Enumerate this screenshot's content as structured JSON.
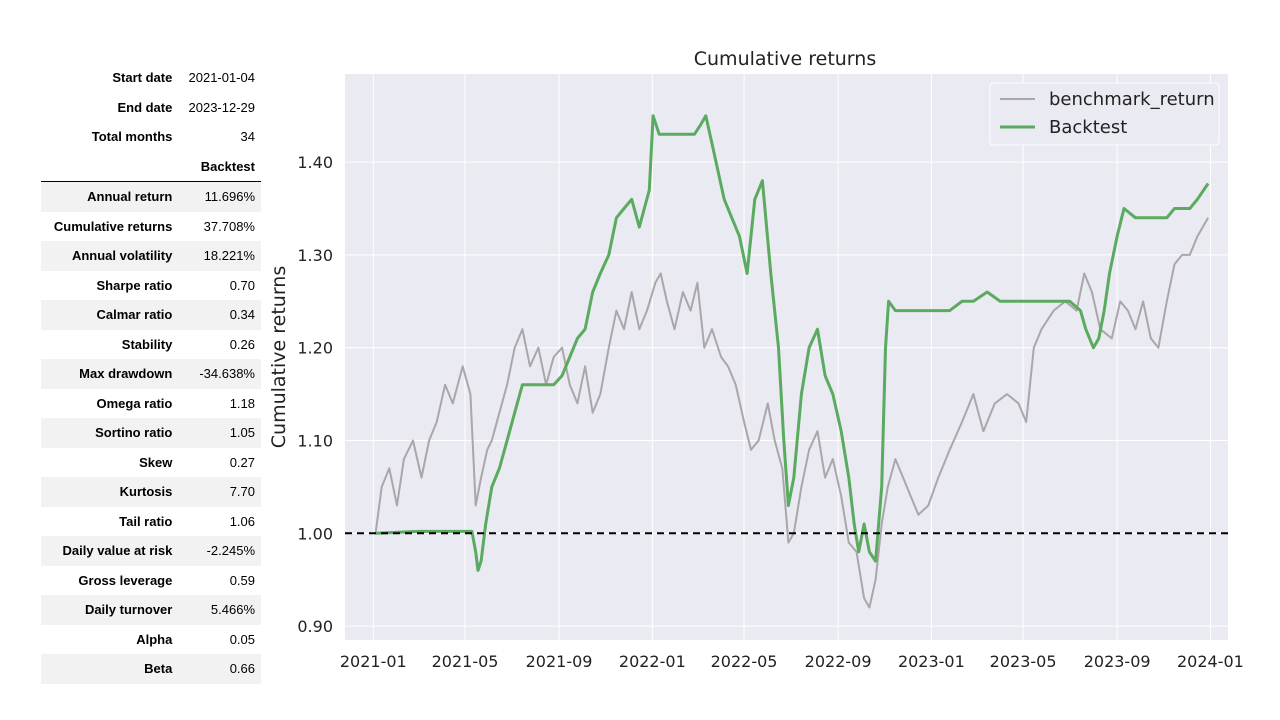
{
  "stats_header": [
    {
      "label": "Start date",
      "value": "2021-01-04"
    },
    {
      "label": "End date",
      "value": "2023-12-29"
    },
    {
      "label": "Total months",
      "value": "34"
    }
  ],
  "stats_column_header": "Backtest",
  "stats_rows": [
    {
      "label": "Annual return",
      "value": "11.696%"
    },
    {
      "label": "Cumulative returns",
      "value": "37.708%"
    },
    {
      "label": "Annual volatility",
      "value": "18.221%"
    },
    {
      "label": "Sharpe ratio",
      "value": "0.70"
    },
    {
      "label": "Calmar ratio",
      "value": "0.34"
    },
    {
      "label": "Stability",
      "value": "0.26"
    },
    {
      "label": "Max drawdown",
      "value": "-34.638%"
    },
    {
      "label": "Omega ratio",
      "value": "1.18"
    },
    {
      "label": "Sortino ratio",
      "value": "1.05"
    },
    {
      "label": "Skew",
      "value": "0.27"
    },
    {
      "label": "Kurtosis",
      "value": "7.70"
    },
    {
      "label": "Tail ratio",
      "value": "1.06"
    },
    {
      "label": "Daily value at risk",
      "value": "-2.245%"
    },
    {
      "label": "Gross leverage",
      "value": "0.59"
    },
    {
      "label": "Daily turnover",
      "value": "5.466%"
    },
    {
      "label": "Alpha",
      "value": "0.05"
    },
    {
      "label": "Beta",
      "value": "0.66"
    }
  ],
  "chart_data": {
    "type": "line",
    "title": "Cumulative returns",
    "xlabel": "",
    "ylabel": "Cumulative returns",
    "xlim": [
      "2020-11-25",
      "2024-01-24"
    ],
    "ylim": [
      0.885,
      1.495
    ],
    "yticks": [
      0.9,
      1.0,
      1.1,
      1.2,
      1.3,
      1.4
    ],
    "ytick_labels": [
      "0.90",
      "1.00",
      "1.10",
      "1.20",
      "1.30",
      "1.40"
    ],
    "xticks": [
      "2021-01-01",
      "2021-05-01",
      "2021-09-01",
      "2022-01-01",
      "2022-05-01",
      "2022-09-01",
      "2023-01-01",
      "2023-05-01",
      "2023-09-01",
      "2024-01-01"
    ],
    "xtick_labels": [
      "2021-01",
      "2021-05",
      "2021-09",
      "2022-01",
      "2022-05",
      "2022-09",
      "2023-01",
      "2023-05",
      "2023-09",
      "2024-01"
    ],
    "reference_line": {
      "y": 1.0,
      "style": "dashed",
      "color": "#000000"
    },
    "legend_position": "top-right",
    "grid": true,
    "series": [
      {
        "name": "benchmark_return",
        "color": "#aaa6a9",
        "points": [
          [
            "2021-01-04",
            1.0
          ],
          [
            "2021-01-12",
            1.05
          ],
          [
            "2021-01-22",
            1.07
          ],
          [
            "2021-02-01",
            1.03
          ],
          [
            "2021-02-10",
            1.08
          ],
          [
            "2021-02-22",
            1.1
          ],
          [
            "2021-03-05",
            1.06
          ],
          [
            "2021-03-15",
            1.1
          ],
          [
            "2021-03-25",
            1.12
          ],
          [
            "2021-04-05",
            1.16
          ],
          [
            "2021-04-15",
            1.14
          ],
          [
            "2021-04-28",
            1.18
          ],
          [
            "2021-05-08",
            1.15
          ],
          [
            "2021-05-15",
            1.03
          ],
          [
            "2021-05-22",
            1.06
          ],
          [
            "2021-05-30",
            1.09
          ],
          [
            "2021-06-05",
            1.1
          ],
          [
            "2021-06-15",
            1.13
          ],
          [
            "2021-06-25",
            1.16
          ],
          [
            "2021-07-05",
            1.2
          ],
          [
            "2021-07-15",
            1.22
          ],
          [
            "2021-07-25",
            1.18
          ],
          [
            "2021-08-05",
            1.2
          ],
          [
            "2021-08-15",
            1.16
          ],
          [
            "2021-08-25",
            1.19
          ],
          [
            "2021-09-05",
            1.2
          ],
          [
            "2021-09-15",
            1.16
          ],
          [
            "2021-09-25",
            1.14
          ],
          [
            "2021-10-05",
            1.18
          ],
          [
            "2021-10-15",
            1.13
          ],
          [
            "2021-10-25",
            1.15
          ],
          [
            "2021-11-05",
            1.2
          ],
          [
            "2021-11-15",
            1.24
          ],
          [
            "2021-11-25",
            1.22
          ],
          [
            "2021-12-05",
            1.26
          ],
          [
            "2021-12-15",
            1.22
          ],
          [
            "2021-12-25",
            1.24
          ],
          [
            "2022-01-05",
            1.27
          ],
          [
            "2022-01-12",
            1.28
          ],
          [
            "2022-01-20",
            1.25
          ],
          [
            "2022-01-30",
            1.22
          ],
          [
            "2022-02-10",
            1.26
          ],
          [
            "2022-02-20",
            1.24
          ],
          [
            "2022-03-01",
            1.27
          ],
          [
            "2022-03-10",
            1.2
          ],
          [
            "2022-03-20",
            1.22
          ],
          [
            "2022-04-01",
            1.19
          ],
          [
            "2022-04-10",
            1.18
          ],
          [
            "2022-04-20",
            1.16
          ],
          [
            "2022-05-01",
            1.12
          ],
          [
            "2022-05-10",
            1.09
          ],
          [
            "2022-05-20",
            1.1
          ],
          [
            "2022-06-01",
            1.14
          ],
          [
            "2022-06-10",
            1.1
          ],
          [
            "2022-06-20",
            1.07
          ],
          [
            "2022-06-28",
            0.99
          ],
          [
            "2022-07-05",
            1.0
          ],
          [
            "2022-07-15",
            1.05
          ],
          [
            "2022-07-25",
            1.09
          ],
          [
            "2022-08-05",
            1.11
          ],
          [
            "2022-08-15",
            1.06
          ],
          [
            "2022-08-25",
            1.08
          ],
          [
            "2022-09-05",
            1.04
          ],
          [
            "2022-09-15",
            0.99
          ],
          [
            "2022-09-25",
            0.98
          ],
          [
            "2022-10-05",
            0.93
          ],
          [
            "2022-10-12",
            0.92
          ],
          [
            "2022-10-20",
            0.95
          ],
          [
            "2022-10-28",
            1.01
          ],
          [
            "2022-11-05",
            1.05
          ],
          [
            "2022-11-15",
            1.08
          ],
          [
            "2022-11-25",
            1.06
          ],
          [
            "2022-12-05",
            1.04
          ],
          [
            "2022-12-15",
            1.02
          ],
          [
            "2022-12-28",
            1.03
          ],
          [
            "2023-01-10",
            1.06
          ],
          [
            "2023-01-25",
            1.09
          ],
          [
            "2023-02-10",
            1.12
          ],
          [
            "2023-02-25",
            1.15
          ],
          [
            "2023-03-10",
            1.11
          ],
          [
            "2023-03-25",
            1.14
          ],
          [
            "2023-04-10",
            1.15
          ],
          [
            "2023-04-25",
            1.14
          ],
          [
            "2023-05-05",
            1.12
          ],
          [
            "2023-05-15",
            1.2
          ],
          [
            "2023-05-25",
            1.22
          ],
          [
            "2023-06-10",
            1.24
          ],
          [
            "2023-06-25",
            1.25
          ],
          [
            "2023-07-10",
            1.24
          ],
          [
            "2023-07-20",
            1.28
          ],
          [
            "2023-07-30",
            1.26
          ],
          [
            "2023-08-10",
            1.22
          ],
          [
            "2023-08-25",
            1.21
          ],
          [
            "2023-09-05",
            1.25
          ],
          [
            "2023-09-15",
            1.24
          ],
          [
            "2023-09-25",
            1.22
          ],
          [
            "2023-10-05",
            1.25
          ],
          [
            "2023-10-15",
            1.21
          ],
          [
            "2023-10-25",
            1.2
          ],
          [
            "2023-11-05",
            1.25
          ],
          [
            "2023-11-15",
            1.29
          ],
          [
            "2023-11-25",
            1.3
          ],
          [
            "2023-12-05",
            1.3
          ],
          [
            "2023-12-15",
            1.32
          ],
          [
            "2023-12-29",
            1.34
          ]
        ]
      },
      {
        "name": "Backtest",
        "color": "#5aaa5f",
        "points": [
          [
            "2021-01-04",
            1.0
          ],
          [
            "2021-03-01",
            1.002
          ],
          [
            "2021-05-10",
            1.002
          ],
          [
            "2021-05-15",
            0.98
          ],
          [
            "2021-05-18",
            0.96
          ],
          [
            "2021-05-22",
            0.97
          ],
          [
            "2021-05-28",
            1.01
          ],
          [
            "2021-06-05",
            1.05
          ],
          [
            "2021-06-15",
            1.07
          ],
          [
            "2021-06-25",
            1.1
          ],
          [
            "2021-07-05",
            1.13
          ],
          [
            "2021-07-15",
            1.16
          ],
          [
            "2021-08-05",
            1.16
          ],
          [
            "2021-08-25",
            1.16
          ],
          [
            "2021-09-05",
            1.17
          ],
          [
            "2021-09-15",
            1.19
          ],
          [
            "2021-09-25",
            1.21
          ],
          [
            "2021-10-05",
            1.22
          ],
          [
            "2021-10-15",
            1.26
          ],
          [
            "2021-10-25",
            1.28
          ],
          [
            "2021-11-05",
            1.3
          ],
          [
            "2021-11-15",
            1.34
          ],
          [
            "2021-11-25",
            1.35
          ],
          [
            "2021-12-05",
            1.36
          ],
          [
            "2021-12-15",
            1.33
          ],
          [
            "2021-12-28",
            1.37
          ],
          [
            "2022-01-02",
            1.45
          ],
          [
            "2022-01-10",
            1.43
          ],
          [
            "2022-01-25",
            1.43
          ],
          [
            "2022-02-10",
            1.43
          ],
          [
            "2022-02-25",
            1.43
          ],
          [
            "2022-03-05",
            1.44
          ],
          [
            "2022-03-12",
            1.45
          ],
          [
            "2022-03-20",
            1.42
          ],
          [
            "2022-03-28",
            1.39
          ],
          [
            "2022-04-05",
            1.36
          ],
          [
            "2022-04-15",
            1.34
          ],
          [
            "2022-04-25",
            1.32
          ],
          [
            "2022-05-05",
            1.28
          ],
          [
            "2022-05-15",
            1.36
          ],
          [
            "2022-05-25",
            1.38
          ],
          [
            "2022-06-05",
            1.28
          ],
          [
            "2022-06-15",
            1.2
          ],
          [
            "2022-06-22",
            1.1
          ],
          [
            "2022-06-28",
            1.03
          ],
          [
            "2022-07-05",
            1.06
          ],
          [
            "2022-07-15",
            1.15
          ],
          [
            "2022-07-25",
            1.2
          ],
          [
            "2022-08-05",
            1.22
          ],
          [
            "2022-08-15",
            1.17
          ],
          [
            "2022-08-25",
            1.15
          ],
          [
            "2022-09-05",
            1.11
          ],
          [
            "2022-09-15",
            1.06
          ],
          [
            "2022-09-22",
            1.01
          ],
          [
            "2022-09-28",
            0.98
          ],
          [
            "2022-10-05",
            1.01
          ],
          [
            "2022-10-12",
            0.98
          ],
          [
            "2022-10-20",
            0.97
          ],
          [
            "2022-10-28",
            1.05
          ],
          [
            "2022-11-02",
            1.2
          ],
          [
            "2022-11-06",
            1.25
          ],
          [
            "2022-11-15",
            1.24
          ],
          [
            "2022-11-30",
            1.24
          ],
          [
            "2022-12-15",
            1.24
          ],
          [
            "2023-01-10",
            1.24
          ],
          [
            "2023-01-25",
            1.24
          ],
          [
            "2023-02-10",
            1.25
          ],
          [
            "2023-02-25",
            1.25
          ],
          [
            "2023-03-15",
            1.26
          ],
          [
            "2023-04-01",
            1.25
          ],
          [
            "2023-05-01",
            1.25
          ],
          [
            "2023-06-01",
            1.25
          ],
          [
            "2023-07-01",
            1.25
          ],
          [
            "2023-07-15",
            1.24
          ],
          [
            "2023-07-22",
            1.22
          ],
          [
            "2023-08-01",
            1.2
          ],
          [
            "2023-08-08",
            1.21
          ],
          [
            "2023-08-15",
            1.24
          ],
          [
            "2023-08-22",
            1.28
          ],
          [
            "2023-09-01",
            1.32
          ],
          [
            "2023-09-10",
            1.35
          ],
          [
            "2023-09-25",
            1.34
          ],
          [
            "2023-10-15",
            1.34
          ],
          [
            "2023-11-05",
            1.34
          ],
          [
            "2023-11-15",
            1.35
          ],
          [
            "2023-12-05",
            1.35
          ],
          [
            "2023-12-15",
            1.36
          ],
          [
            "2023-12-29",
            1.377
          ]
        ]
      }
    ]
  }
}
